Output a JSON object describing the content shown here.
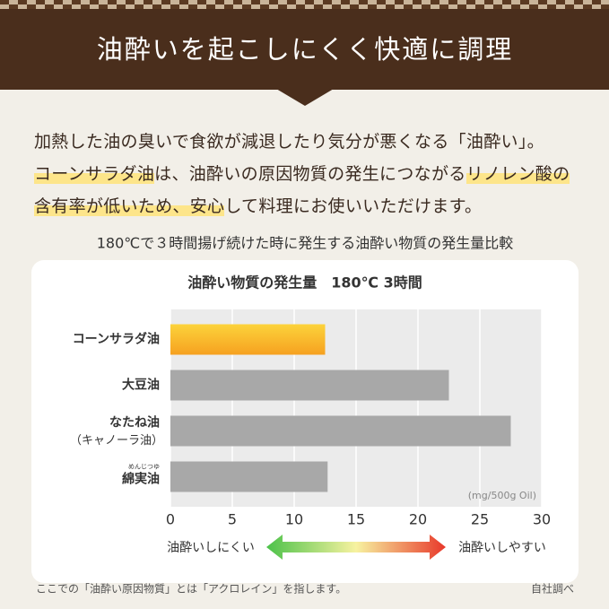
{
  "header": {
    "title": "油酔いを起こしにくく快適に調理"
  },
  "paragraph": [
    [
      {
        "text": "加熱した油の臭いで食欲が減退したり気分が悪くなる「油酔い」。",
        "highlight": false
      }
    ],
    [
      {
        "text": "コーンサラダ油",
        "highlight": true
      },
      {
        "text": "は、油酔いの原因物質の発生につながる",
        "highlight": false
      },
      {
        "text": "リノレン酸の",
        "highlight": true
      }
    ],
    [
      {
        "text": "含有率が低いため、安心",
        "highlight": true
      },
      {
        "text": "して料理にお使いいただけます。",
        "highlight": false
      }
    ]
  ],
  "subtitle": "180℃で３時間揚げ続けた時に発生する油酔い物質の発生量比較",
  "chart_data": {
    "type": "hbar",
    "title": "油酔い物質の発生量　180℃ 3時間",
    "categories": [
      "コーンサラダ油",
      "大豆油",
      "なたね油",
      "綿実油"
    ],
    "category_notes": {
      "canola": "（キャノーラ油）",
      "ruby": "めんじつゆ"
    },
    "values": [
      12.5,
      22.5,
      27.5,
      12.7
    ],
    "colors": [
      "#f8b327",
      "#a8a8a8",
      "#a8a8a8",
      "#a8a8a8"
    ],
    "xlim": [
      0,
      30
    ],
    "xticks": [
      0,
      5,
      10,
      15,
      20,
      25,
      30
    ],
    "grid": true,
    "unit": "(mg/500g Oil)",
    "scale_left": "油酔いしにくい",
    "scale_right": "油酔いしやすい"
  },
  "footer": {
    "note": "ここでの「油酔い原因物質」とは「アクロレイン」を指します。",
    "source": "自社調べ"
  }
}
